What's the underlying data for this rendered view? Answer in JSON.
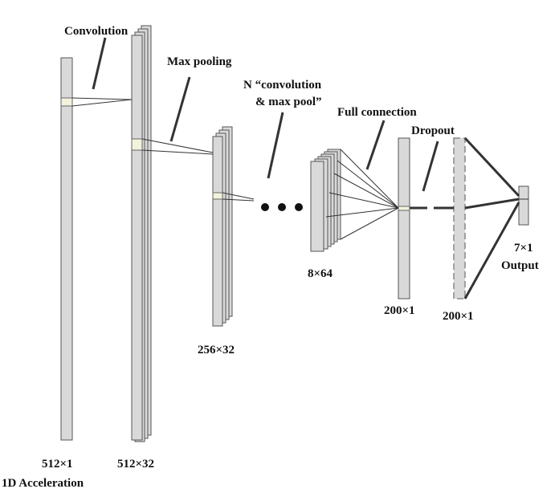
{
  "labels": {
    "convolution": "Convolution",
    "max_pooling": "Max pooling",
    "n_conv_line1": "N “convolution",
    "n_conv_line2": "& max pool”",
    "full_connection": "Full connection",
    "dropout": "Dropout",
    "input_size": "512×1",
    "input_name": "1D Acceleration",
    "conv1_size": "512×32",
    "pool1_size": "256×32",
    "convN_size": "8×64",
    "fc_size": "200×1",
    "dropout_size": "200×1",
    "output_size": "7×1",
    "output_name": "Output"
  }
}
